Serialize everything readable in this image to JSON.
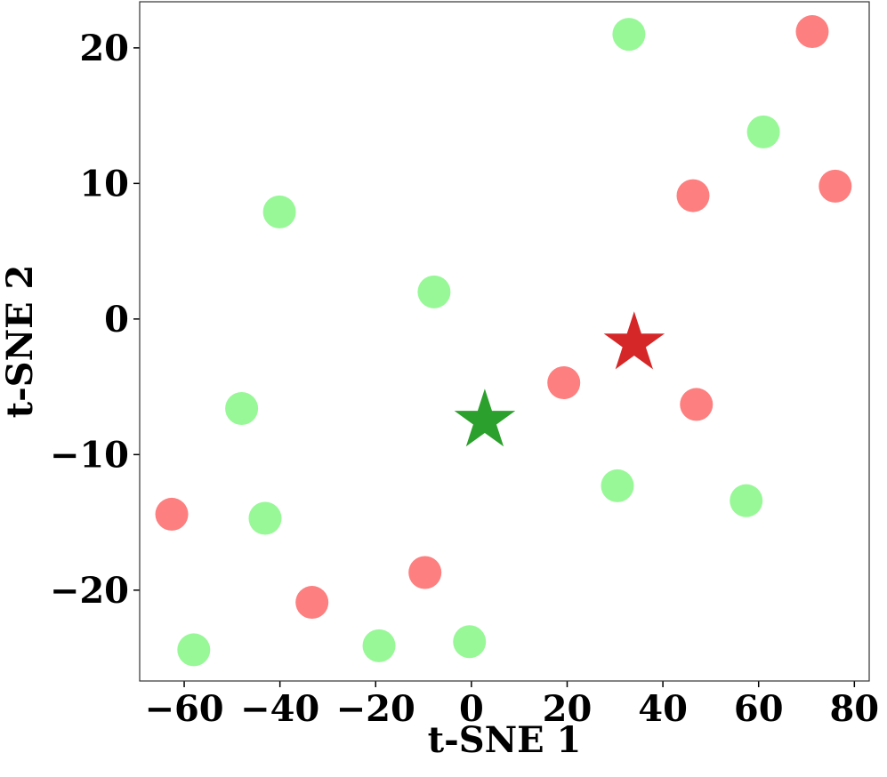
{
  "chart_data": {
    "type": "scatter",
    "xlabel": "t-SNE 1",
    "ylabel": "t-SNE 2",
    "xlim": [
      -69.3,
      83.1
    ],
    "ylim": [
      -26.7,
      23.4
    ],
    "xticks": [
      {
        "value": -60,
        "label": "−60"
      },
      {
        "value": -40,
        "label": "−40"
      },
      {
        "value": -20,
        "label": "−20"
      },
      0,
      20,
      40,
      60,
      80
    ],
    "yticks": [
      {
        "value": -20,
        "label": "−20"
      },
      {
        "value": -10,
        "label": "−10"
      },
      0,
      10,
      20
    ],
    "series": [
      {
        "color": "#98f898",
        "marker": "circle",
        "x": [
          32.9,
          61.0,
          -40.1,
          -7.8,
          -48.0,
          30.5,
          57.4,
          -43.1,
          -58.0,
          -19.3,
          -0.4
        ],
        "values": [
          21.0,
          13.8,
          7.9,
          2.0,
          -6.6,
          -12.3,
          -13.4,
          -14.7,
          -24.4,
          -24.1,
          -23.8
        ]
      },
      {
        "color": "#fd7f7f",
        "marker": "circle",
        "x": [
          71.2,
          46.3,
          76.0,
          19.3,
          47.0,
          -62.6,
          -9.7,
          -33.3
        ],
        "values": [
          21.2,
          9.1,
          9.8,
          -4.7,
          -6.3,
          -14.4,
          -18.7,
          -20.9
        ]
      },
      {
        "color": "#2ca02c",
        "marker": "star",
        "x": [
          2.8
        ],
        "values": [
          -7.5
        ]
      },
      {
        "color": "#d62728",
        "marker": "star",
        "x": [
          34.0
        ],
        "values": [
          -1.8
        ]
      }
    ]
  }
}
